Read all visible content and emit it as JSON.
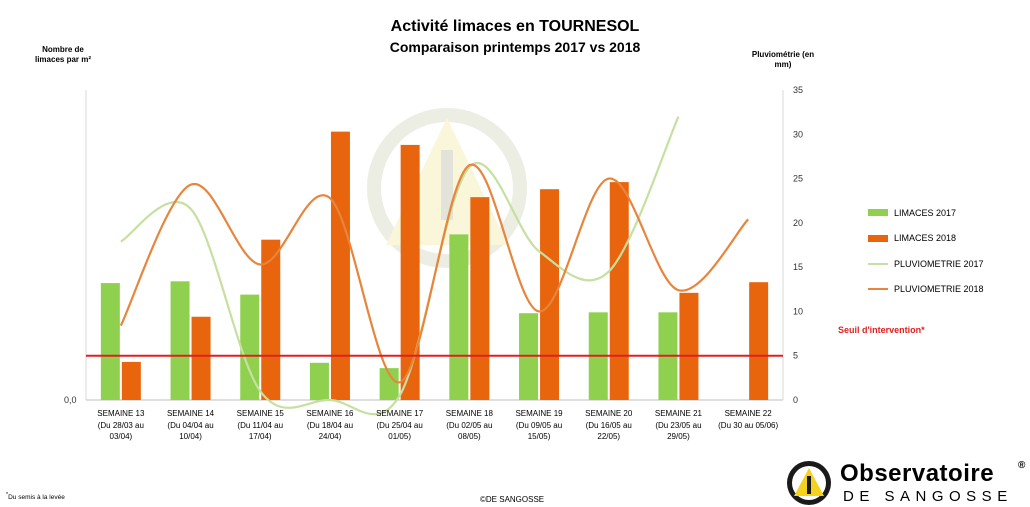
{
  "chart_data": {
    "type": "bar",
    "title": "Activité limaces en TOURNESOL",
    "subtitle": "Comparaison printemps 2017 vs 2018",
    "ylabel_left": "Nombre de limaces par m²",
    "ylabel_right": "Pluviométrie (en mm)",
    "y_left_ticks": [
      "0,0"
    ],
    "y_right_ticks": [
      "0",
      "5",
      "10",
      "15",
      "20",
      "25",
      "30",
      "35"
    ],
    "y_right_range": [
      0,
      35
    ],
    "categories": [
      {
        "week": "SEMAINE 13",
        "dates": [
          "(Du 28/03 au",
          "03/04)"
        ]
      },
      {
        "week": "SEMAINE 14",
        "dates": [
          "(Du 04/04 au",
          "10/04)"
        ]
      },
      {
        "week": "SEMAINE 15",
        "dates": [
          "(Du 11/04 au",
          "17/04)"
        ]
      },
      {
        "week": "SEMAINE 16",
        "dates": [
          "(Du 18/04 au",
          "24/04)"
        ]
      },
      {
        "week": "SEMAINE 17",
        "dates": [
          "(Du 25/04 au",
          "01/05)"
        ]
      },
      {
        "week": "SEMAINE 18",
        "dates": [
          "(Du 02/05 au",
          "08/05)"
        ]
      },
      {
        "week": "SEMAINE 19",
        "dates": [
          "(Du 09/05 au",
          "15/05)"
        ]
      },
      {
        "week": "SEMAINE 20",
        "dates": [
          "(Du 16/05 au",
          "22/05)"
        ]
      },
      {
        "week": "SEMAINE 21",
        "dates": [
          "(Du 23/05 au",
          "29/05)"
        ]
      },
      {
        "week": "SEMAINE 22",
        "dates": [
          "(Du 30 au 05/06)"
        ]
      }
    ],
    "bar_series": [
      {
        "name": "LIMACES 2017",
        "color": "#8fd14f",
        "values": [
          13.2,
          13.4,
          11.9,
          4.2,
          3.6,
          18.7,
          9.8,
          9.9,
          9.9,
          null
        ]
      },
      {
        "name": "LIMACES 2018",
        "color": "#e8650d",
        "values": [
          4.3,
          9.4,
          18.1,
          30.3,
          28.8,
          22.9,
          23.8,
          24.6,
          12.1,
          13.3
        ]
      }
    ],
    "line_series": [
      {
        "name": "PLUVIOMETRIE 2017",
        "color": "#c5e0a0",
        "values": [
          17.9,
          21.6,
          1.0,
          0,
          0.5,
          26.3,
          16.8,
          14.5,
          32.0,
          null
        ]
      },
      {
        "name": "PLUVIOMETRIE 2018",
        "color": "#e8853d",
        "values": [
          8.4,
          24.3,
          15.3,
          22.8,
          2.0,
          26.5,
          10.0,
          25.0,
          12.4,
          20.4
        ]
      }
    ],
    "threshold": {
      "label": "Seuil d'intervention*",
      "value": 5,
      "color": "#e02020"
    },
    "legend_position": "right",
    "grid": false
  },
  "footnote": "Du semis à la levée",
  "copyright": "©DE SANGOSSE",
  "logo": {
    "line1": "Observatoire",
    "reg": "®",
    "line2": "DE SANGOSSE"
  }
}
